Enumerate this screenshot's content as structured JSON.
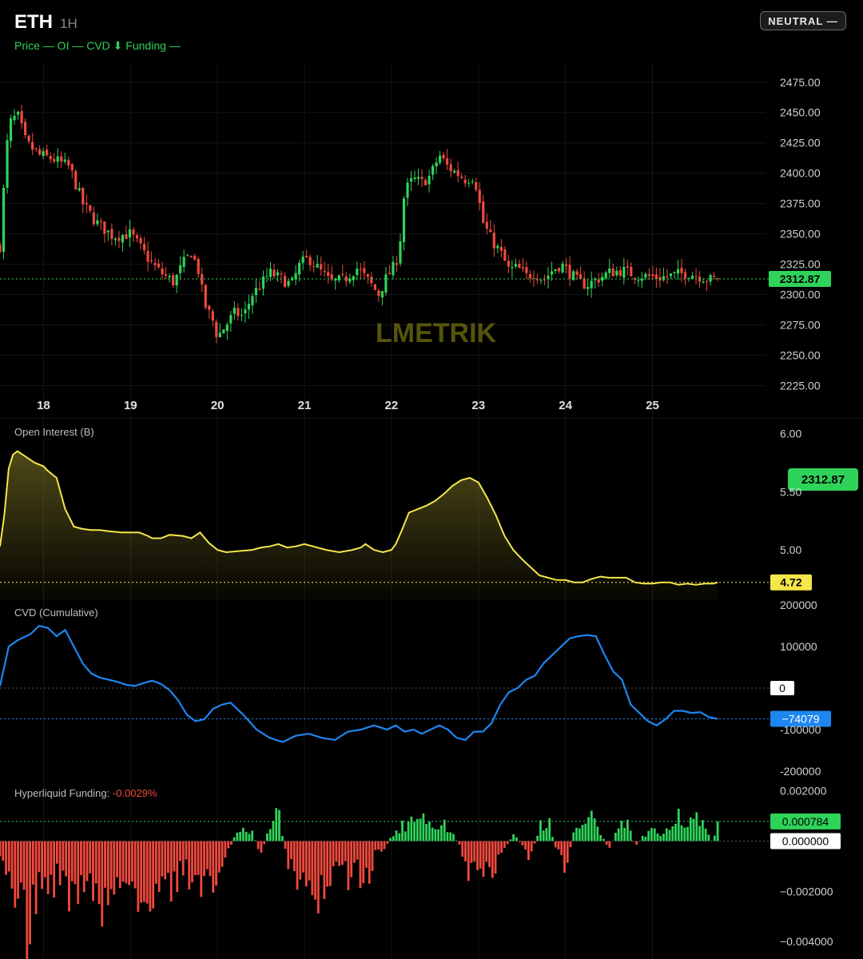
{
  "header": {
    "symbol": "ETH",
    "interval": "1H",
    "legend": "Price — OI — CVD ⬇ Funding —",
    "sentiment_badge": "NEUTRAL —"
  },
  "colors": {
    "up": "#2fd35a",
    "down": "#f0493e",
    "oi": "#f5e64a",
    "cvd": "#1e86f0",
    "funding_negative_text": "#f0493e",
    "watermark": "#6b6a10"
  },
  "watermark_text": "LMETRIK",
  "chart_data": [
    {
      "type": "candlestick",
      "title": "",
      "x_tick_labels": [
        "18",
        "19",
        "20",
        "21",
        "22",
        "23",
        "24",
        "25"
      ],
      "y_tick_labels": [
        "2475.00",
        "2450.00",
        "2425.00",
        "2400.00",
        "2375.00",
        "2350.00",
        "2325.00",
        "2300.00",
        "2275.00",
        "2250.00",
        "2225.00"
      ],
      "ylim": [
        2220,
        2490
      ],
      "last_price_label": "2312.87",
      "last_price": 2312.87,
      "close_path": [
        [
          17.5,
          2340
        ],
        [
          17.55,
          2395
        ],
        [
          17.6,
          2440
        ],
        [
          17.7,
          2448
        ],
        [
          17.8,
          2425
        ],
        [
          17.95,
          2415
        ],
        [
          18.1,
          2412
        ],
        [
          18.3,
          2405
        ],
        [
          18.45,
          2375
        ],
        [
          18.6,
          2360
        ],
        [
          18.8,
          2348
        ],
        [
          19.0,
          2350
        ],
        [
          19.1,
          2340
        ],
        [
          19.25,
          2325
        ],
        [
          19.35,
          2318
        ],
        [
          19.5,
          2310
        ],
        [
          19.6,
          2325
        ],
        [
          19.7,
          2335
        ],
        [
          19.78,
          2320
        ],
        [
          19.85,
          2292
        ],
        [
          19.95,
          2278
        ],
        [
          20.0,
          2265
        ],
        [
          20.1,
          2275
        ],
        [
          20.2,
          2285
        ],
        [
          20.3,
          2282
        ],
        [
          20.4,
          2300
        ],
        [
          20.5,
          2308
        ],
        [
          20.6,
          2318
        ],
        [
          20.75,
          2312
        ],
        [
          20.85,
          2308
        ],
        [
          20.95,
          2325
        ],
        [
          21.05,
          2330
        ],
        [
          21.2,
          2318
        ],
        [
          21.3,
          2310
        ],
        [
          21.45,
          2312
        ],
        [
          21.6,
          2322
        ],
        [
          21.75,
          2310
        ],
        [
          21.85,
          2300
        ],
        [
          21.95,
          2315
        ],
        [
          22.05,
          2325
        ],
        [
          22.1,
          2345
        ],
        [
          22.15,
          2385
        ],
        [
          22.25,
          2395
        ],
        [
          22.35,
          2392
        ],
        [
          22.45,
          2398
        ],
        [
          22.55,
          2415
        ],
        [
          22.65,
          2405
        ],
        [
          22.75,
          2400
        ],
        [
          22.85,
          2395
        ],
        [
          22.95,
          2398
        ],
        [
          23.0,
          2380
        ],
        [
          23.05,
          2360
        ],
        [
          23.15,
          2345
        ],
        [
          23.25,
          2335
        ],
        [
          23.35,
          2320
        ],
        [
          23.45,
          2322
        ],
        [
          23.55,
          2315
        ],
        [
          23.65,
          2318
        ],
        [
          23.75,
          2312
        ],
        [
          23.85,
          2320
        ],
        [
          23.95,
          2325
        ],
        [
          24.05,
          2318
        ],
        [
          24.15,
          2310
        ],
        [
          24.25,
          2308
        ],
        [
          24.35,
          2312
        ],
        [
          24.5,
          2318
        ],
        [
          24.65,
          2320
        ],
        [
          24.8,
          2316
        ],
        [
          24.95,
          2315
        ],
        [
          25.1,
          2314
        ],
        [
          25.25,
          2316
        ],
        [
          25.4,
          2318
        ],
        [
          25.55,
          2315
        ],
        [
          25.65,
          2312
        ],
        [
          25.75,
          2312.87
        ]
      ]
    },
    {
      "type": "area",
      "title": "Open Interest (B)",
      "series": [
        {
          "name": "Open Interest (B)",
          "color": "#f5e64a"
        }
      ],
      "y_tick_labels": [
        "6.00",
        "5.50",
        "5.00"
      ],
      "ylim": [
        4.56,
        6.06
      ],
      "last_value_label": "4.72",
      "last_value": 4.72,
      "overlay_label": "2312.87",
      "x": [
        17.5,
        17.55,
        17.6,
        17.65,
        17.7,
        17.8,
        17.9,
        18.0,
        18.05,
        18.15,
        18.25,
        18.35,
        18.45,
        18.55,
        18.65,
        18.75,
        18.9,
        19.1,
        19.2,
        19.25,
        19.35,
        19.45,
        19.6,
        19.7,
        19.8,
        19.9,
        20.0,
        20.1,
        20.25,
        20.4,
        20.5,
        20.6,
        20.7,
        20.8,
        20.9,
        21.0,
        21.1,
        21.25,
        21.4,
        21.55,
        21.65,
        21.7,
        21.8,
        21.9,
        22.0,
        22.05,
        22.12,
        22.2,
        22.3,
        22.4,
        22.5,
        22.6,
        22.7,
        22.8,
        22.9,
        23.0,
        23.1,
        23.2,
        23.3,
        23.4,
        23.5,
        23.6,
        23.7,
        23.8,
        23.9,
        24.0,
        24.1,
        24.2,
        24.3,
        24.4,
        24.5,
        24.6,
        24.7,
        24.8,
        24.9,
        25.0,
        25.1,
        25.2,
        25.3,
        25.4,
        25.5,
        25.6,
        25.7,
        25.75
      ],
      "values": [
        5.03,
        5.3,
        5.7,
        5.82,
        5.85,
        5.8,
        5.75,
        5.72,
        5.68,
        5.62,
        5.35,
        5.2,
        5.18,
        5.17,
        5.17,
        5.16,
        5.15,
        5.15,
        5.12,
        5.1,
        5.1,
        5.13,
        5.12,
        5.1,
        5.15,
        5.06,
        5.0,
        4.98,
        4.99,
        5.0,
        5.02,
        5.03,
        5.05,
        5.02,
        5.03,
        5.05,
        5.03,
        5.0,
        4.98,
        5.0,
        5.02,
        5.05,
        5.0,
        4.98,
        5.0,
        5.05,
        5.17,
        5.32,
        5.35,
        5.38,
        5.42,
        5.48,
        5.55,
        5.6,
        5.62,
        5.58,
        5.45,
        5.3,
        5.12,
        5.0,
        4.92,
        4.85,
        4.78,
        4.76,
        4.74,
        4.74,
        4.72,
        4.72,
        4.75,
        4.77,
        4.76,
        4.76,
        4.76,
        4.72,
        4.71,
        4.71,
        4.72,
        4.72,
        4.7,
        4.71,
        4.7,
        4.71,
        4.71,
        4.72
      ]
    },
    {
      "type": "line",
      "title": "CVD (Cumulative)",
      "series": [
        {
          "name": "CVD (Cumulative)",
          "color": "#1e86f0"
        }
      ],
      "y_tick_labels": [
        "200000",
        "100000",
        "-100000",
        "-200000"
      ],
      "ylim": [
        -210000,
        210000
      ],
      "zero_label": "0",
      "last_value_label": "−74079",
      "last_value": -74079,
      "x": [
        17.5,
        17.6,
        17.7,
        17.85,
        17.95,
        18.05,
        18.15,
        18.25,
        18.35,
        18.45,
        18.55,
        18.65,
        18.75,
        18.85,
        18.95,
        19.05,
        19.15,
        19.25,
        19.35,
        19.45,
        19.55,
        19.65,
        19.75,
        19.85,
        19.95,
        20.05,
        20.15,
        20.3,
        20.45,
        20.6,
        20.75,
        20.9,
        21.05,
        21.2,
        21.35,
        21.5,
        21.65,
        21.8,
        21.95,
        22.05,
        22.15,
        22.25,
        22.35,
        22.45,
        22.55,
        22.65,
        22.75,
        22.85,
        22.95,
        23.05,
        23.15,
        23.25,
        23.35,
        23.45,
        23.55,
        23.65,
        23.75,
        23.85,
        23.95,
        24.05,
        24.15,
        24.25,
        24.35,
        24.45,
        24.55,
        24.65,
        24.75,
        24.85,
        24.95,
        25.05,
        25.15,
        25.25,
        25.35,
        25.45,
        25.55,
        25.65,
        25.75
      ],
      "values": [
        5000,
        100000,
        115000,
        130000,
        150000,
        145000,
        125000,
        140000,
        100000,
        60000,
        35000,
        25000,
        20000,
        15000,
        8000,
        5000,
        12000,
        18000,
        10000,
        -5000,
        -30000,
        -65000,
        -80000,
        -75000,
        -50000,
        -40000,
        -35000,
        -65000,
        -100000,
        -120000,
        -130000,
        -115000,
        -110000,
        -120000,
        -125000,
        -105000,
        -100000,
        -90000,
        -100000,
        -90000,
        -105000,
        -100000,
        -110000,
        -100000,
        -90000,
        -100000,
        -120000,
        -125000,
        -105000,
        -105000,
        -85000,
        -40000,
        -10000,
        0,
        20000,
        30000,
        60000,
        80000,
        100000,
        120000,
        125000,
        128000,
        125000,
        80000,
        40000,
        20000,
        -40000,
        -60000,
        -80000,
        -90000,
        -75000,
        -55000,
        -55000,
        -60000,
        -58000,
        -70000,
        -74079
      ]
    },
    {
      "type": "bar",
      "title": "Hyperliquid Funding: ",
      "value_text": "-0.0029%",
      "y_tick_labels": [
        "0.002000",
        "0",
        "−0.002000",
        "−0.004000"
      ],
      "ylim": [
        -0.0047,
        0.0025
      ],
      "zero_label": "0.000000",
      "last_value_label": "0.000784",
      "last_value": 0.000784,
      "x": [
        17.5,
        17.6,
        17.7,
        17.8,
        17.9,
        18.0,
        18.1,
        18.2,
        18.3,
        18.4,
        18.5,
        18.6,
        18.7,
        18.8,
        18.9,
        19.0,
        19.1,
        19.2,
        19.3,
        19.4,
        19.5,
        19.6,
        19.7,
        19.8,
        19.9,
        20.0,
        20.1,
        20.2,
        20.3,
        20.4,
        20.5,
        20.6,
        20.7,
        20.8,
        20.9,
        21.0,
        21.1,
        21.2,
        21.3,
        21.4,
        21.5,
        21.6,
        21.7,
        21.8,
        21.9,
        22.0,
        22.1,
        22.2,
        22.3,
        22.4,
        22.5,
        22.6,
        22.7,
        22.8,
        22.9,
        23.0,
        23.1,
        23.2,
        23.3,
        23.4,
        23.5,
        23.6,
        23.7,
        23.8,
        23.9,
        24.0,
        24.1,
        24.2,
        24.3,
        24.4,
        24.5,
        24.6,
        24.7,
        24.8,
        24.9,
        25.0,
        25.1,
        25.2,
        25.3,
        25.4,
        25.5,
        25.6,
        25.7,
        25.75
      ],
      "values": [
        -0.0011,
        -0.0016,
        -0.0023,
        -0.0035,
        -0.0025,
        -0.0015,
        -0.0018,
        -0.0012,
        -0.0022,
        -0.0019,
        -0.0013,
        -0.0025,
        -0.0027,
        -0.0018,
        -0.0016,
        -0.0021,
        -0.0027,
        -0.0024,
        -0.0019,
        -0.0022,
        -0.0017,
        -0.0012,
        -0.0015,
        -0.0018,
        -0.0013,
        -0.0017,
        -0.0006,
        0.0002,
        0.0004,
        0.0003,
        -0.0005,
        0.0006,
        0.0011,
        -0.0008,
        -0.0015,
        -0.0012,
        -0.0018,
        -0.0024,
        -0.0016,
        -0.0009,
        -0.0014,
        -0.0012,
        -0.0018,
        -0.0007,
        -0.0004,
        0.0002,
        0.0005,
        0.0008,
        0.0012,
        0.0009,
        0.0004,
        0.0007,
        0.0003,
        -0.0003,
        -0.0013,
        -0.0008,
        -0.0014,
        -0.0009,
        -0.0003,
        0.0003,
        -0.0002,
        -0.0007,
        0.0006,
        0.0009,
        -0.0004,
        -0.0011,
        0.0004,
        0.0007,
        0.0011,
        0.0003,
        -0.0003,
        0.0004,
        0.0008,
        -0.0002,
        0.0002,
        0.0004,
        0.0002,
        0.0008,
        0.0011,
        0.0006,
        0.0009,
        0.0005,
        -0.0001,
        0.000784
      ]
    }
  ]
}
